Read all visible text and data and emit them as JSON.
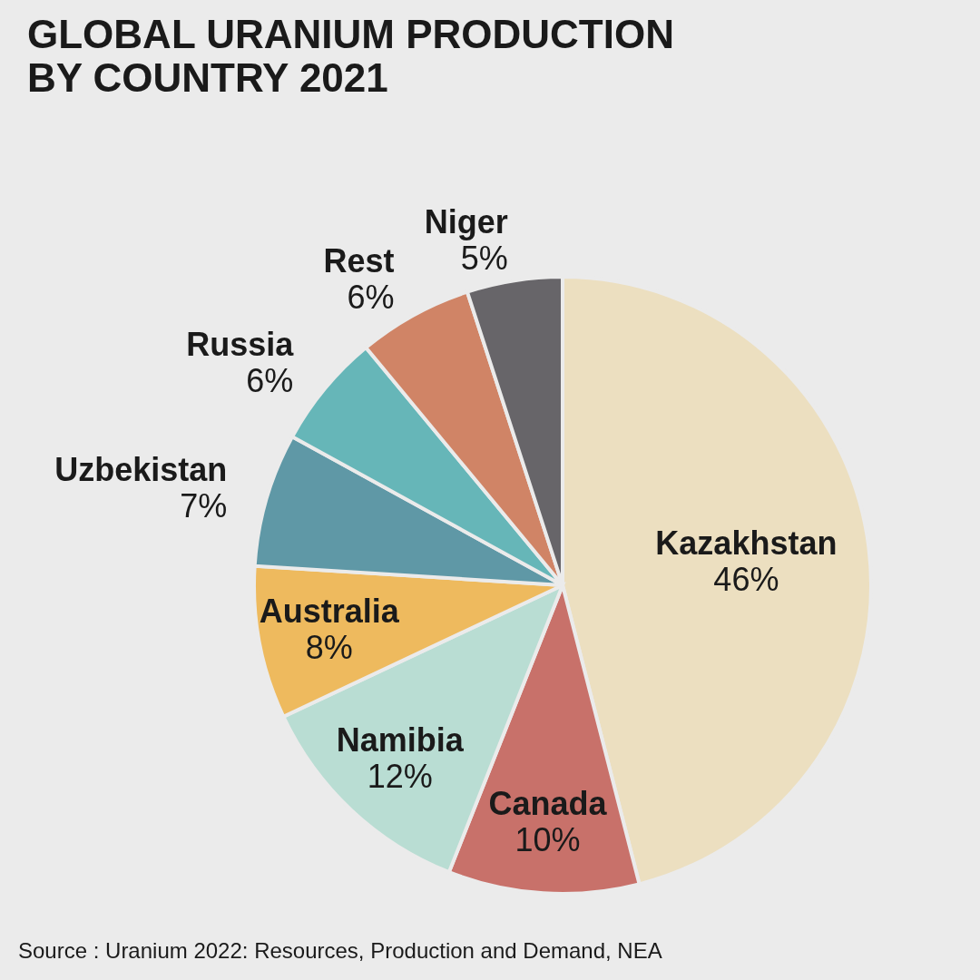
{
  "chart_data": {
    "type": "pie",
    "title": "GLOBAL URANIUM PRODUCTION BY COUNTRY 2021",
    "categories": [
      "Kazakhstan",
      "Canada",
      "Namibia",
      "Australia",
      "Uzbekistan",
      "Russia",
      "Rest",
      "Niger"
    ],
    "values": [
      46,
      10,
      12,
      8,
      7,
      6,
      6,
      5
    ],
    "value_labels": [
      "46%",
      "10%",
      "12%",
      "8%",
      "7%",
      "6%",
      "6%",
      "5%"
    ],
    "colors": [
      "#ecdfc0",
      "#c8716a",
      "#b9ddd3",
      "#eeba5e",
      "#5f98a6",
      "#66b6b8",
      "#d08466",
      "#676569"
    ],
    "legend": false,
    "annotations": [
      "Source : Uranium 2022: Resources, Production and Demand, NEA"
    ]
  }
}
